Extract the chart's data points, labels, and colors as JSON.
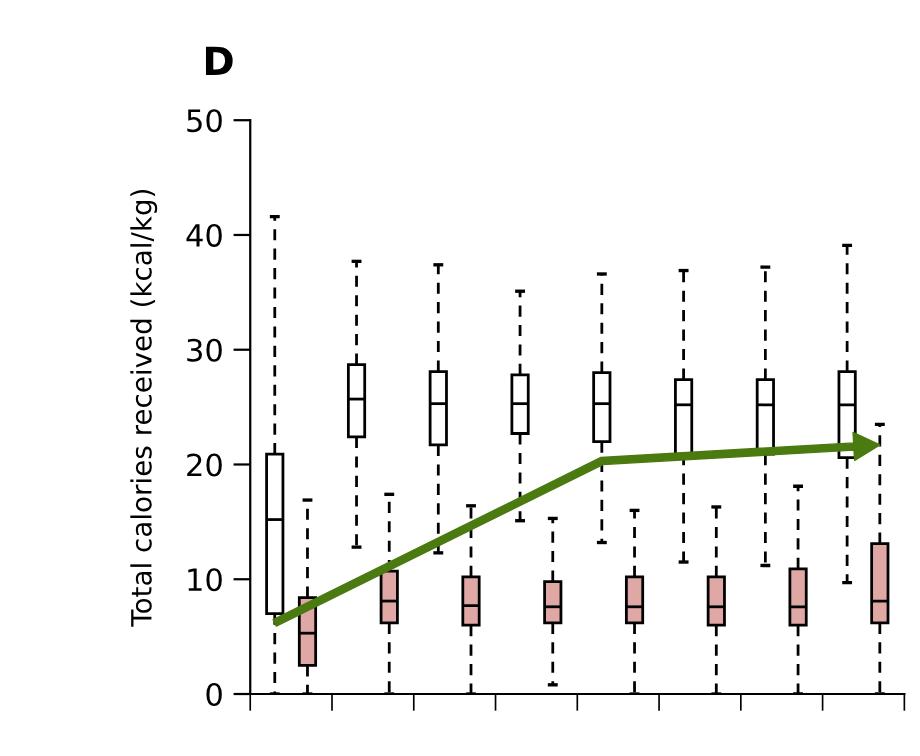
{
  "chart_data": {
    "type": "box",
    "title": "D",
    "ylabel": "Total calories received (kcal/kg)",
    "categories": [
      null,
      null,
      null,
      null,
      null,
      null,
      null,
      null
    ],
    "ylim": [
      0,
      50
    ],
    "yticks": [
      0,
      10,
      20,
      30,
      40,
      50
    ],
    "grid": false,
    "legend": false,
    "series": [
      {
        "type": "box",
        "color": "#ffffff",
        "boxes": [
          {
            "low": 0,
            "q1": 7.0,
            "median": 15.2,
            "q3": 20.9,
            "high": 41.6
          },
          {
            "low": 12.8,
            "q1": 22.4,
            "median": 25.7,
            "q3": 28.7,
            "high": 37.7
          },
          {
            "low": 12.3,
            "q1": 21.7,
            "median": 25.3,
            "q3": 28.1,
            "high": 37.4
          },
          {
            "low": 15.1,
            "q1": 22.7,
            "median": 25.3,
            "q3": 27.8,
            "high": 35.1
          },
          {
            "low": 13.2,
            "q1": 22.0,
            "median": 25.3,
            "q3": 28.0,
            "high": 36.6
          },
          {
            "low": 11.5,
            "q1": 20.9,
            "median": 25.2,
            "q3": 27.4,
            "high": 36.9
          },
          {
            "low": 11.2,
            "q1": 20.9,
            "median": 25.2,
            "q3": 27.4,
            "high": 37.2
          },
          {
            "low": 9.7,
            "q1": 20.6,
            "median": 25.2,
            "q3": 28.1,
            "high": 39.1
          }
        ]
      },
      {
        "type": "box",
        "color": "#e0a8a4",
        "boxes": [
          {
            "low": 0,
            "q1": 2.5,
            "median": 5.3,
            "q3": 8.4,
            "high": 16.9
          },
          {
            "low": 0,
            "q1": 6.2,
            "median": 8.1,
            "q3": 10.7,
            "high": 17.4
          },
          {
            "low": 0,
            "q1": 6.0,
            "median": 7.7,
            "q3": 10.2,
            "high": 16.4
          },
          {
            "low": 0.8,
            "q1": 6.2,
            "median": 7.6,
            "q3": 9.8,
            "high": 15.3
          },
          {
            "low": 0,
            "q1": 6.2,
            "median": 7.6,
            "q3": 10.2,
            "high": 16.0
          },
          {
            "low": 0,
            "q1": 6.0,
            "median": 7.6,
            "q3": 10.2,
            "high": 16.3
          },
          {
            "low": 0,
            "q1": 6.0,
            "median": 7.6,
            "q3": 10.9,
            "high": 18.1
          },
          {
            "low": 0,
            "q1": 6.2,
            "median": 8.1,
            "q3": 13.1,
            "high": 23.5
          }
        ]
      }
    ]
  }
}
